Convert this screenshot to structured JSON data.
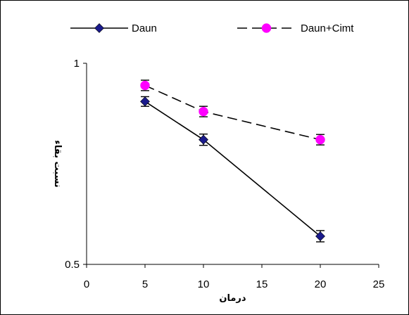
{
  "chart_data": {
    "type": "line",
    "title": "",
    "xlabel": "درمان",
    "ylabel": "نسبت بقاء",
    "xlim": [
      0,
      25
    ],
    "ylim": [
      0.5,
      1
    ],
    "x_ticks": [
      0,
      5,
      10,
      15,
      20,
      25
    ],
    "y_ticks": [
      0.5,
      1
    ],
    "x_tick_labels": [
      "0",
      "5",
      "10",
      "15",
      "20",
      "25"
    ],
    "y_tick_labels": [
      "0.5",
      "1"
    ],
    "grid": false,
    "legend_position": "top",
    "series": [
      {
        "name": "Daun",
        "x": [
          5,
          10,
          20
        ],
        "y": [
          0.905,
          0.81,
          0.57
        ],
        "error": [
          0.012,
          0.014,
          0.014
        ],
        "color": "#1a1a8c",
        "marker": "diamond",
        "line": "solid"
      },
      {
        "name": "Daun+Cimt",
        "x": [
          5,
          10,
          20
        ],
        "y": [
          0.945,
          0.88,
          0.81
        ],
        "error": [
          0.013,
          0.013,
          0.013
        ],
        "color": "#ff00ff",
        "marker": "circle",
        "line": "dashed"
      }
    ]
  }
}
